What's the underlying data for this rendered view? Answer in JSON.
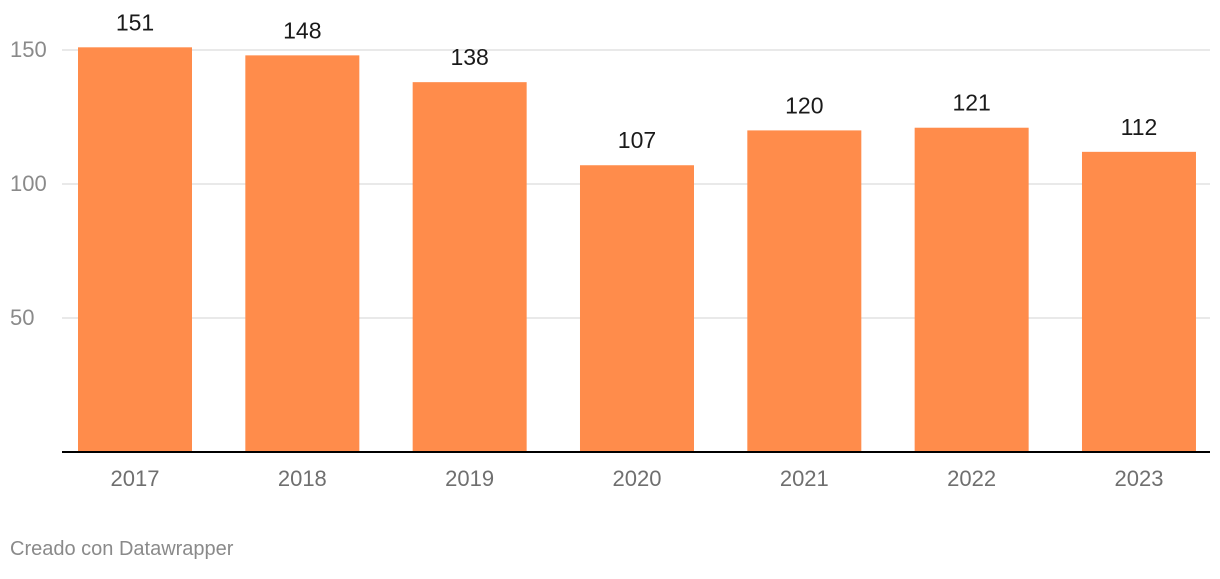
{
  "chart_data": {
    "type": "bar",
    "categories": [
      "2017",
      "2018",
      "2019",
      "2020",
      "2021",
      "2022",
      "2023"
    ],
    "values": [
      151,
      148,
      138,
      107,
      120,
      121,
      112
    ],
    "title": "",
    "xlabel": "",
    "ylabel": "",
    "ylim": [
      0,
      150
    ],
    "yticks": [
      50,
      100,
      150
    ],
    "grid": true,
    "data_labels": true,
    "bar_color": "#ff8c4b",
    "gridline_color": "#e2e2e2",
    "axis_color": "#000000",
    "tick_label_color": "#8a8a8a",
    "data_label_color": "#1a1a1a"
  },
  "footer": {
    "credit": "Creado con Datawrapper"
  }
}
